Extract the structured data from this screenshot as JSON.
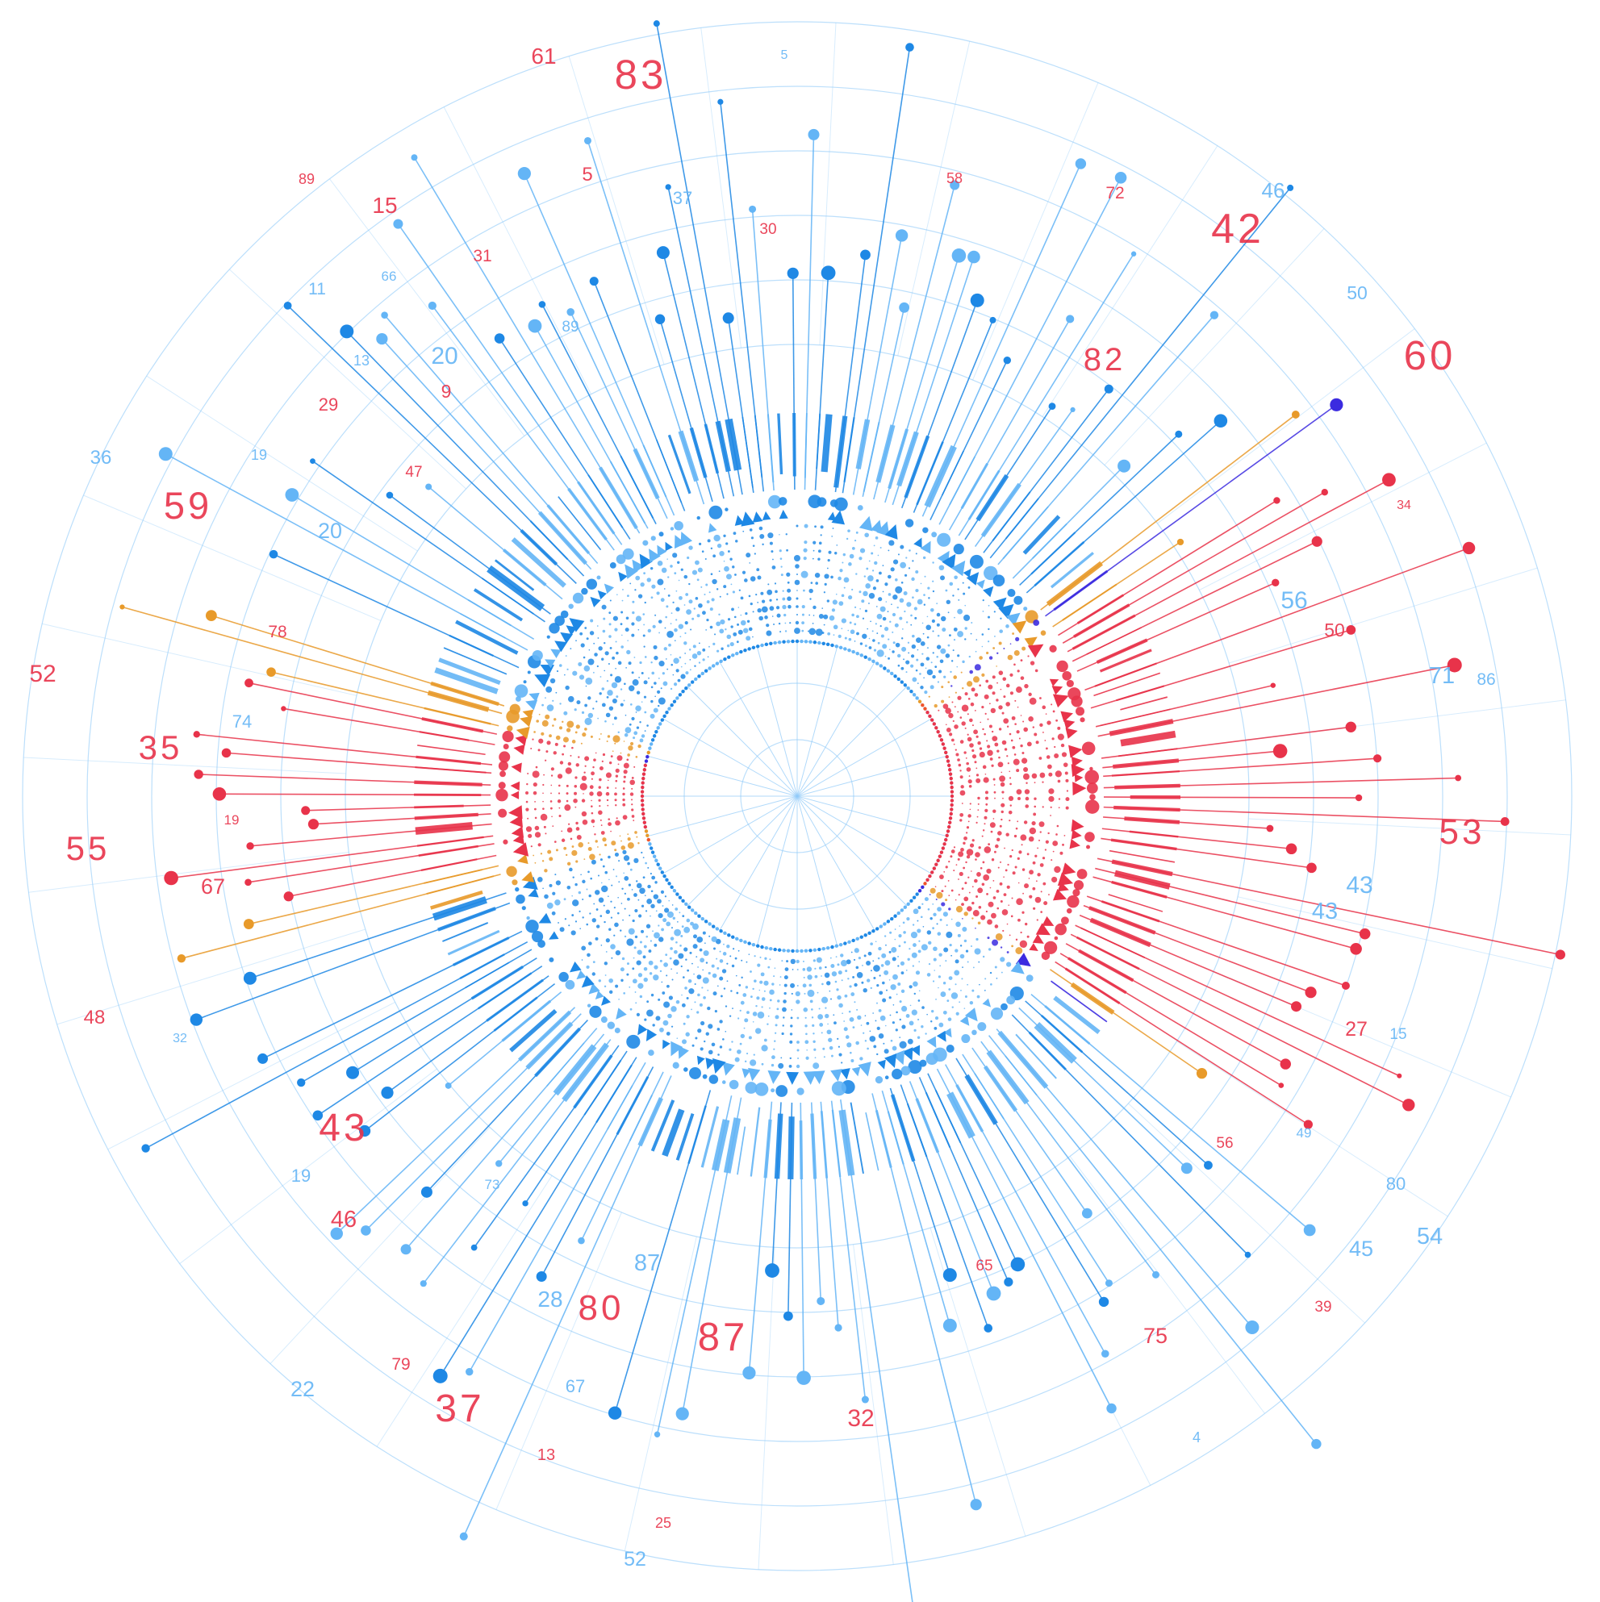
{
  "colors": {
    "blue": "#1e88e5",
    "light_blue": "#64b5f6",
    "grid": "#90caf9",
    "red": "#e8334a",
    "orange": "#f0542a",
    "amber": "#e89a2a",
    "purple": "#3b2be0",
    "label_red": "#e8334a",
    "label_blue": "#64b5f6"
  },
  "labels": [
    {
      "t": "82",
      "c": "red"
    },
    {
      "t": "35",
      "c": "red"
    },
    {
      "t": "42",
      "c": "red"
    },
    {
      "t": "87",
      "c": "red"
    },
    {
      "t": "59",
      "c": "red"
    },
    {
      "t": "37",
      "c": "red"
    },
    {
      "t": "83",
      "c": "red"
    },
    {
      "t": "55",
      "c": "red"
    },
    {
      "t": "60",
      "c": "red"
    },
    {
      "t": "43",
      "c": "red"
    },
    {
      "t": "80",
      "c": "red"
    },
    {
      "t": "53",
      "c": "red"
    },
    {
      "t": "29",
      "c": "red"
    },
    {
      "t": "39",
      "c": "red"
    },
    {
      "t": "15",
      "c": "red"
    },
    {
      "t": "27",
      "c": "red"
    },
    {
      "t": "30",
      "c": "red"
    },
    {
      "t": "52",
      "c": "red"
    },
    {
      "t": "65",
      "c": "red"
    },
    {
      "t": "79",
      "c": "red"
    },
    {
      "t": "34",
      "c": "red"
    },
    {
      "t": "50",
      "c": "red"
    },
    {
      "t": "61",
      "c": "red"
    },
    {
      "t": "72",
      "c": "red"
    },
    {
      "t": "46",
      "c": "red"
    },
    {
      "t": "32",
      "c": "red"
    },
    {
      "t": "47",
      "c": "red"
    },
    {
      "t": "58",
      "c": "red"
    },
    {
      "t": "48",
      "c": "red"
    },
    {
      "t": "13",
      "c": "red"
    },
    {
      "t": "31",
      "c": "red"
    },
    {
      "t": "25",
      "c": "red"
    },
    {
      "t": "67",
      "c": "red"
    },
    {
      "t": "75",
      "c": "red"
    },
    {
      "t": "9",
      "c": "red"
    },
    {
      "t": "19",
      "c": "red"
    },
    {
      "t": "5",
      "c": "red"
    },
    {
      "t": "78",
      "c": "red"
    },
    {
      "t": "56",
      "c": "red"
    },
    {
      "t": "89",
      "c": "red"
    },
    {
      "t": "19",
      "c": "blue"
    },
    {
      "t": "28",
      "c": "blue"
    },
    {
      "t": "5",
      "c": "blue"
    },
    {
      "t": "36",
      "c": "blue"
    },
    {
      "t": "66",
      "c": "blue"
    },
    {
      "t": "11",
      "c": "blue"
    },
    {
      "t": "43",
      "c": "blue"
    },
    {
      "t": "13",
      "c": "blue"
    },
    {
      "t": "86",
      "c": "blue"
    },
    {
      "t": "89",
      "c": "blue"
    },
    {
      "t": "54",
      "c": "blue"
    },
    {
      "t": "20",
      "c": "blue"
    },
    {
      "t": "74",
      "c": "blue"
    },
    {
      "t": "56",
      "c": "blue"
    },
    {
      "t": "20",
      "c": "blue"
    },
    {
      "t": "71",
      "c": "blue"
    },
    {
      "t": "37",
      "c": "blue"
    },
    {
      "t": "19",
      "c": "blue"
    },
    {
      "t": "50",
      "c": "blue"
    },
    {
      "t": "80",
      "c": "blue"
    },
    {
      "t": "22",
      "c": "blue"
    },
    {
      "t": "45",
      "c": "blue"
    },
    {
      "t": "43",
      "c": "blue"
    },
    {
      "t": "32",
      "c": "blue"
    },
    {
      "t": "46",
      "c": "blue"
    },
    {
      "t": "52",
      "c": "blue"
    },
    {
      "t": "4",
      "c": "blue"
    },
    {
      "t": "15",
      "c": "blue"
    },
    {
      "t": "87",
      "c": "blue"
    },
    {
      "t": "49",
      "c": "blue"
    },
    {
      "t": "67",
      "c": "blue"
    },
    {
      "t": "73",
      "c": "blue"
    }
  ]
}
